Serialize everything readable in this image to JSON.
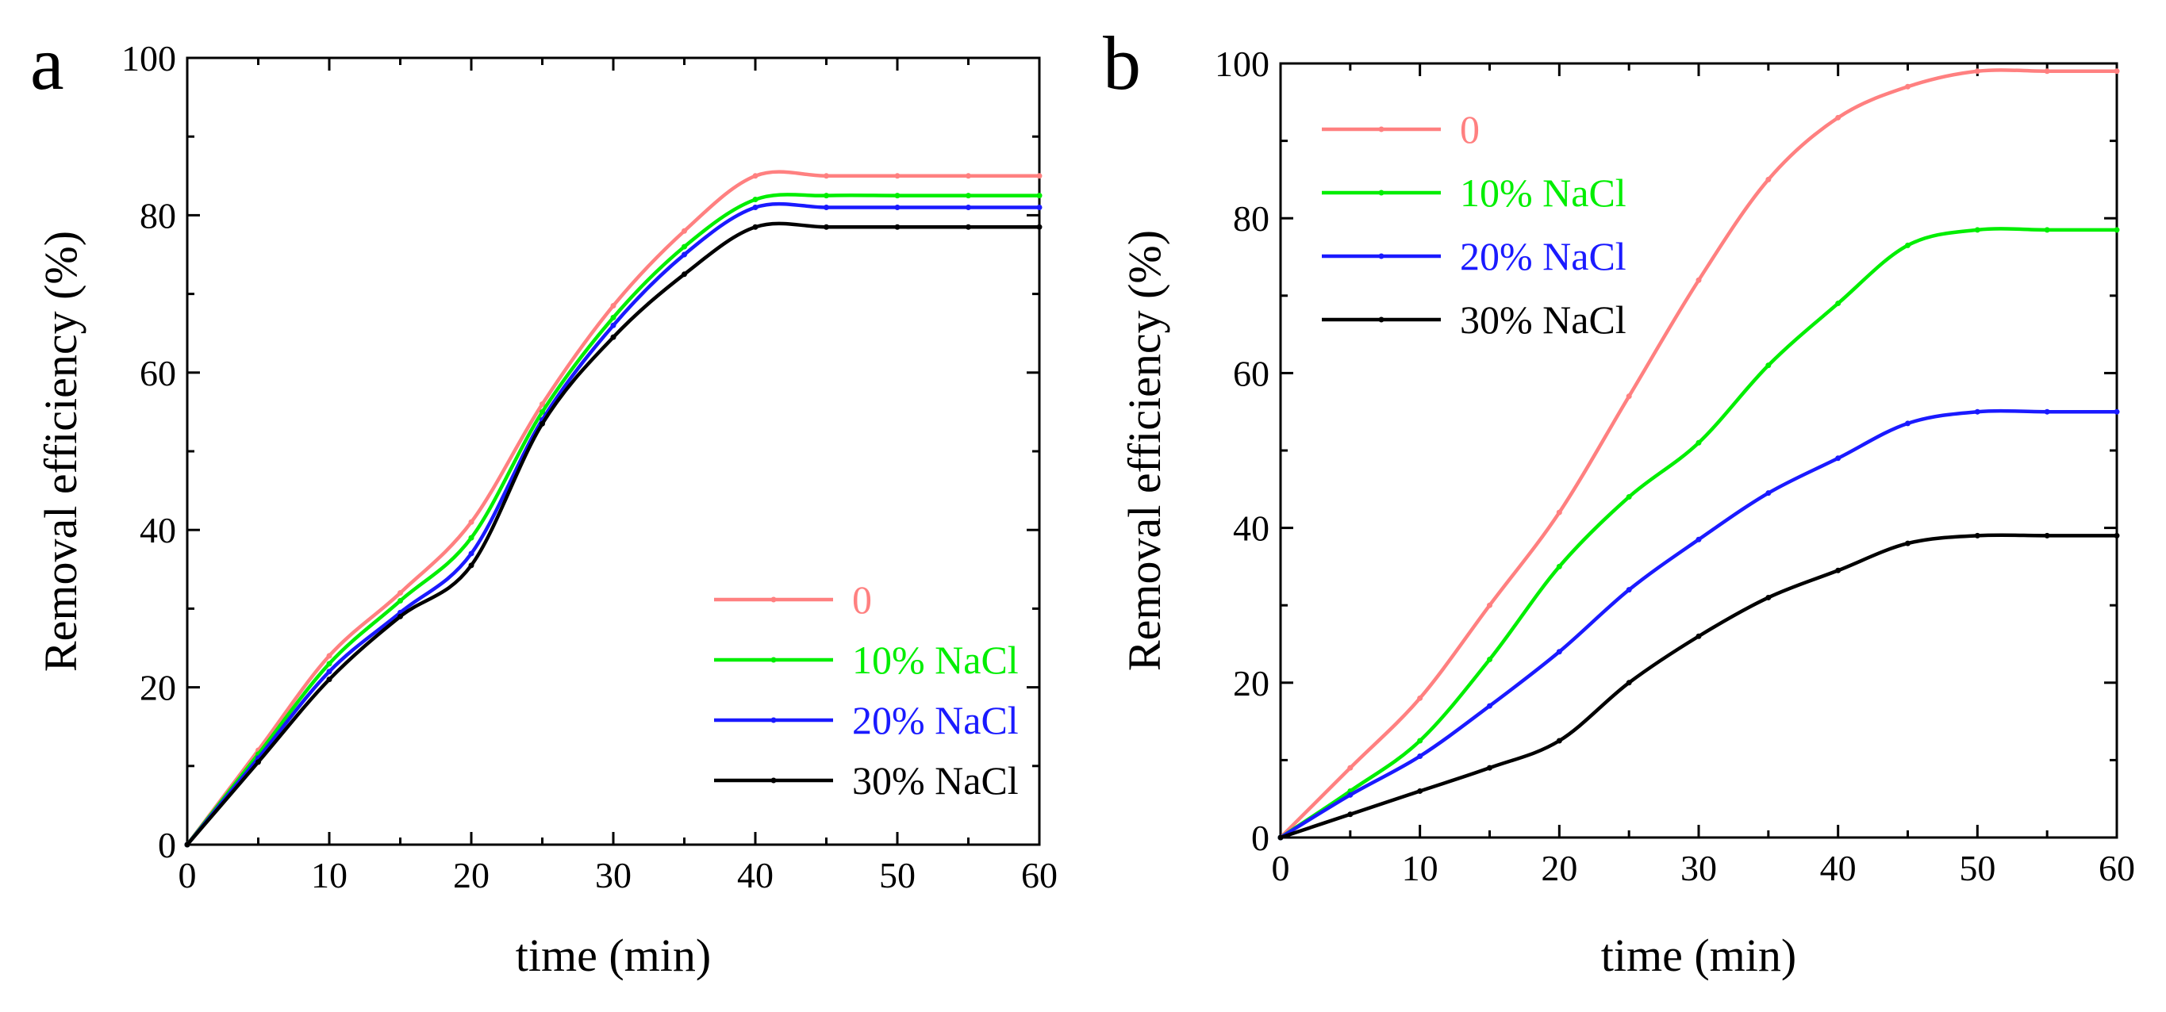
{
  "colors": {
    "s0": "#ff8080",
    "s10": "#00ee00",
    "s20": "#1a1aff",
    "s30": "#000000"
  },
  "chart_data": [
    {
      "panel": "a",
      "type": "line",
      "xlabel": "time (min)",
      "ylabel": "Removal efficiency (%)",
      "xlim": [
        0,
        60
      ],
      "ylim": [
        0,
        100
      ],
      "xticks": [
        0,
        10,
        20,
        30,
        40,
        50,
        60
      ],
      "yticks": [
        0,
        20,
        40,
        60,
        80,
        100
      ],
      "legend_position": "bottom-right",
      "x": [
        0,
        5,
        10,
        15,
        20,
        25,
        30,
        35,
        40,
        45,
        50,
        55,
        60
      ],
      "series": [
        {
          "name": "0",
          "color_key": "s0",
          "values": [
            0,
            12,
            24,
            32,
            41,
            56,
            68.5,
            78,
            85,
            85,
            85,
            85,
            85
          ]
        },
        {
          "name": "10% NaCl",
          "color_key": "s10",
          "values": [
            0,
            11.5,
            23,
            31,
            39,
            55,
            67,
            76,
            82,
            82.5,
            82.5,
            82.5,
            82.5
          ]
        },
        {
          "name": "20% NaCl",
          "color_key": "s20",
          "values": [
            0,
            11,
            22,
            29.5,
            37,
            54,
            66,
            75,
            81,
            81,
            81,
            81,
            81
          ]
        },
        {
          "name": "30% NaCl",
          "color_key": "s30",
          "values": [
            0,
            10.5,
            21,
            29,
            35.5,
            53.5,
            64.5,
            72.5,
            78.5,
            78.5,
            78.5,
            78.5,
            78.5
          ]
        }
      ]
    },
    {
      "panel": "b",
      "type": "line",
      "xlabel": "time (min)",
      "ylabel": "Removal efficiency (%)",
      "xlim": [
        0,
        60
      ],
      "ylim": [
        0,
        100
      ],
      "xticks": [
        0,
        10,
        20,
        30,
        40,
        50,
        60
      ],
      "yticks": [
        0,
        20,
        40,
        60,
        80,
        100
      ],
      "legend_position": "top-left",
      "x": [
        0,
        5,
        10,
        15,
        20,
        25,
        30,
        35,
        40,
        45,
        50,
        55,
        60
      ],
      "series": [
        {
          "name": "0",
          "color_key": "s0",
          "values": [
            0,
            9,
            18,
            30,
            42,
            57,
            72,
            85,
            93,
            97,
            99,
            99,
            99
          ]
        },
        {
          "name": "10% NaCl",
          "color_key": "s10",
          "values": [
            0,
            6,
            12.5,
            23,
            35,
            44,
            51,
            61,
            69,
            76.5,
            78.5,
            78.5,
            78.5
          ]
        },
        {
          "name": "20% NaCl",
          "color_key": "s20",
          "values": [
            0,
            5.5,
            10.5,
            17,
            24,
            32,
            38.5,
            44.5,
            49,
            53.5,
            55,
            55,
            55
          ]
        },
        {
          "name": "30% NaCl",
          "color_key": "s30",
          "values": [
            0,
            3,
            6,
            9,
            12.5,
            20,
            26,
            31,
            34.5,
            38,
            39,
            39,
            39
          ]
        }
      ]
    }
  ]
}
